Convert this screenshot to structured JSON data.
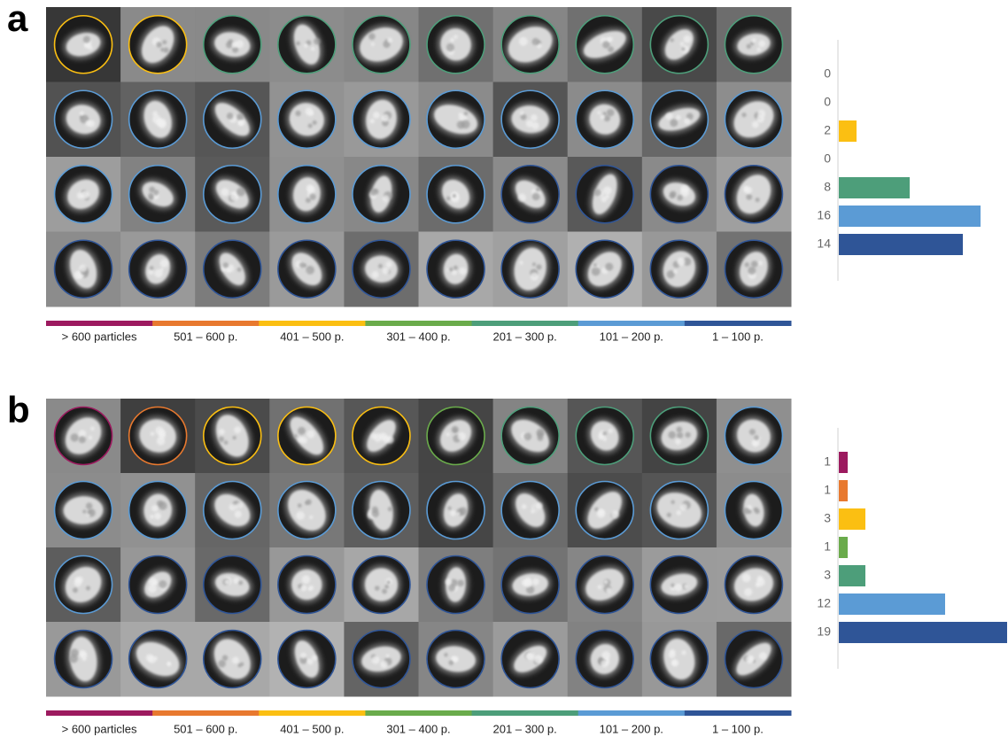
{
  "chart_data": [
    {
      "type": "bar",
      "panel": "a",
      "categories": [
        "> 600 particles",
        "501 – 600 p.",
        "401 – 500 p.",
        "301 – 400 p.",
        "201 – 300 p.",
        "101 – 200 p.",
        "1 – 100 p."
      ],
      "colors": [
        "#9c1a5f",
        "#e8792f",
        "#fbbf12",
        "#6aab4b",
        "#4d9e7a",
        "#5b9bd5",
        "#2f5597"
      ],
      "values": [
        0,
        0,
        2,
        0,
        8,
        16,
        14
      ]
    },
    {
      "type": "bar",
      "panel": "b",
      "categories": [
        "> 600 particles",
        "501 – 600 p.",
        "401 – 500 p.",
        "301 – 400 p.",
        "201 – 300 p.",
        "101 – 200 p.",
        "1 – 100 p."
      ],
      "colors": [
        "#9c1a5f",
        "#e8792f",
        "#fbbf12",
        "#6aab4b",
        "#4d9e7a",
        "#5b9bd5",
        "#2f5597"
      ],
      "values": [
        1,
        1,
        3,
        1,
        3,
        12,
        19
      ]
    }
  ]
}
